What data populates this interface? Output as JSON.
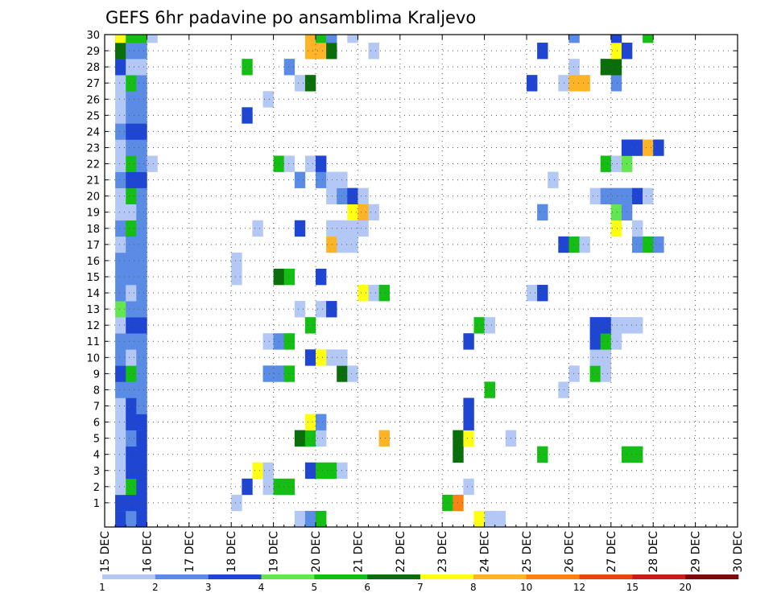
{
  "chart_data": {
    "type": "heatmap",
    "title": "GEFS 6hr padavine po ansamblima Kraljevo",
    "x_ticks": [
      "15 DEC",
      "16 DEC",
      "17 DEC",
      "18 DEC",
      "19 DEC",
      "20 DEC",
      "21 DEC",
      "22 DEC",
      "23 DEC",
      "24 DEC",
      "25 DEC",
      "26 DEC",
      "27 DEC",
      "28 DEC",
      "29 DEC",
      "30 DEC"
    ],
    "y_ticks": [
      "1",
      "2",
      "3",
      "4",
      "5",
      "6",
      "7",
      "8",
      "9",
      "10",
      "11",
      "12",
      "13",
      "14",
      "15",
      "16",
      "17",
      "18",
      "19",
      "20",
      "21",
      "22",
      "23",
      "24",
      "25",
      "26",
      "27",
      "28",
      "29",
      "30"
    ],
    "x_range_days": [
      0,
      15
    ],
    "y_range": [
      0,
      30
    ],
    "grid": true,
    "legend": {
      "placement": "bottom",
      "levels": [
        "1",
        "2",
        "3",
        "4",
        "5",
        "6",
        "7",
        "8",
        "10",
        "12",
        "15",
        "20"
      ],
      "colors": [
        "#b4c8f5",
        "#5a8ce6",
        "#1e46d2",
        "#64e650",
        "#14be14",
        "#0a6e0a",
        "#ffff14",
        "#ffb428",
        "#fa8214",
        "#e64614",
        "#c81e14",
        "#780a0a"
      ]
    },
    "cells": [
      [
        1,
        0,
        1
      ],
      [
        1,
        0,
        2
      ],
      [
        1,
        1,
        1
      ],
      [
        1,
        1,
        2
      ],
      [
        1,
        2,
        0
      ],
      [
        1,
        3,
        0
      ],
      [
        1,
        4,
        0
      ],
      [
        1,
        5,
        0
      ],
      [
        1,
        6,
        0
      ],
      [
        1,
        7,
        0
      ],
      [
        1,
        8,
        1
      ],
      [
        1,
        9,
        2
      ],
      [
        1,
        10,
        1
      ],
      [
        1,
        11,
        1
      ],
      [
        1,
        12,
        0
      ],
      [
        1,
        13,
        3
      ],
      [
        1,
        14,
        1
      ],
      [
        1,
        15,
        1
      ],
      [
        1,
        16,
        1
      ],
      [
        1,
        17,
        0
      ],
      [
        1,
        18,
        1
      ],
      [
        1,
        19,
        0
      ],
      [
        1,
        20,
        0
      ],
      [
        1,
        21,
        1
      ],
      [
        1,
        22,
        0
      ],
      [
        1,
        23,
        0
      ],
      [
        1,
        24,
        1
      ],
      [
        1,
        25,
        0
      ],
      [
        1,
        26,
        0
      ],
      [
        1,
        27,
        0
      ],
      [
        1,
        28,
        1
      ],
      [
        1,
        28,
        2
      ],
      [
        1,
        29,
        3
      ],
      [
        1,
        29,
        4
      ],
      [
        1,
        29,
        5
      ],
      [
        1,
        30,
        5
      ],
      [
        1,
        30,
        6
      ],
      [
        2,
        0,
        1
      ],
      [
        2,
        1,
        2
      ],
      [
        2,
        2,
        4
      ],
      [
        2,
        3,
        2
      ],
      [
        2,
        4,
        2
      ],
      [
        2,
        5,
        1
      ],
      [
        2,
        6,
        2
      ],
      [
        2,
        7,
        2
      ],
      [
        2,
        8,
        1
      ],
      [
        2,
        9,
        4
      ],
      [
        2,
        10,
        0
      ],
      [
        2,
        11,
        1
      ],
      [
        2,
        12,
        2
      ],
      [
        2,
        13,
        1
      ],
      [
        2,
        14,
        0
      ],
      [
        2,
        15,
        1
      ],
      [
        2,
        16,
        1
      ],
      [
        2,
        17,
        1
      ],
      [
        2,
        18,
        4
      ],
      [
        2,
        19,
        0
      ],
      [
        2,
        20,
        4
      ],
      [
        2,
        21,
        2
      ],
      [
        2,
        22,
        4
      ],
      [
        2,
        23,
        1
      ],
      [
        2,
        24,
        2
      ],
      [
        2,
        25,
        1
      ],
      [
        2,
        26,
        1
      ],
      [
        2,
        27,
        4
      ],
      [
        2,
        28,
        0
      ],
      [
        2,
        29,
        1
      ],
      [
        2,
        30,
        4
      ],
      [
        3,
        0,
        2
      ],
      [
        3,
        1,
        2
      ],
      [
        3,
        2,
        2
      ],
      [
        3,
        3,
        2
      ],
      [
        3,
        4,
        2
      ],
      [
        3,
        5,
        2
      ],
      [
        3,
        6,
        2
      ],
      [
        3,
        7,
        1
      ],
      [
        3,
        8,
        1
      ],
      [
        3,
        9,
        1
      ],
      [
        3,
        10,
        1
      ],
      [
        3,
        11,
        1
      ],
      [
        3,
        12,
        2
      ],
      [
        3,
        13,
        1
      ],
      [
        3,
        14,
        1
      ],
      [
        3,
        15,
        1
      ],
      [
        3,
        16,
        1
      ],
      [
        3,
        17,
        1
      ],
      [
        3,
        18,
        1
      ],
      [
        3,
        19,
        1
      ],
      [
        3,
        20,
        1
      ],
      [
        3,
        21,
        2
      ],
      [
        3,
        22,
        1
      ],
      [
        3,
        23,
        1
      ],
      [
        3,
        24,
        2
      ],
      [
        3,
        25,
        1
      ],
      [
        3,
        26,
        1
      ],
      [
        3,
        27,
        1
      ],
      [
        3,
        28,
        0
      ],
      [
        3,
        29,
        1
      ],
      [
        3,
        30,
        4
      ],
      [
        4,
        22,
        0
      ],
      [
        4,
        30,
        0
      ],
      [
        12,
        1,
        0
      ],
      [
        12,
        15,
        0
      ],
      [
        12,
        16,
        0
      ],
      [
        13,
        2,
        2
      ],
      [
        13,
        25,
        2
      ],
      [
        13,
        28,
        4
      ],
      [
        14,
        3,
        6
      ],
      [
        14,
        18,
        0
      ],
      [
        15,
        2,
        0
      ],
      [
        15,
        3,
        0
      ],
      [
        15,
        9,
        1
      ],
      [
        15,
        11,
        0
      ],
      [
        15,
        26,
        0
      ],
      [
        16,
        2,
        4
      ],
      [
        16,
        9,
        1
      ],
      [
        16,
        11,
        1
      ],
      [
        16,
        22,
        4
      ],
      [
        16,
        15,
        5
      ],
      [
        17,
        2,
        4
      ],
      [
        17,
        9,
        4
      ],
      [
        17,
        11,
        4
      ],
      [
        17,
        15,
        4
      ],
      [
        17,
        22,
        0
      ],
      [
        17,
        28,
        1
      ],
      [
        18,
        0,
        0
      ],
      [
        18,
        5,
        5
      ],
      [
        18,
        13,
        0
      ],
      [
        18,
        18,
        2
      ],
      [
        18,
        21,
        1
      ],
      [
        18,
        27,
        0
      ],
      [
        19,
        0,
        1
      ],
      [
        19,
        3,
        2
      ],
      [
        19,
        5,
        4
      ],
      [
        19,
        6,
        6
      ],
      [
        19,
        10,
        2
      ],
      [
        19,
        12,
        4
      ],
      [
        19,
        22,
        0
      ],
      [
        19,
        27,
        5
      ],
      [
        19,
        29,
        7
      ],
      [
        19,
        30,
        7
      ],
      [
        20,
        0,
        4
      ],
      [
        20,
        3,
        4
      ],
      [
        20,
        5,
        0
      ],
      [
        20,
        6,
        1
      ],
      [
        20,
        10,
        6
      ],
      [
        20,
        13,
        0
      ],
      [
        20,
        15,
        2
      ],
      [
        20,
        21,
        1
      ],
      [
        20,
        22,
        2
      ],
      [
        20,
        29,
        7
      ],
      [
        20,
        30,
        4
      ],
      [
        21,
        3,
        4
      ],
      [
        21,
        10,
        0
      ],
      [
        21,
        13,
        2
      ],
      [
        21,
        17,
        7
      ],
      [
        21,
        18,
        0
      ],
      [
        21,
        20,
        0
      ],
      [
        21,
        21,
        0
      ],
      [
        21,
        29,
        5
      ],
      [
        21,
        30,
        1
      ],
      [
        22,
        3,
        0
      ],
      [
        22,
        9,
        5
      ],
      [
        22,
        10,
        0
      ],
      [
        22,
        17,
        0
      ],
      [
        22,
        18,
        0
      ],
      [
        22,
        20,
        1
      ],
      [
        22,
        21,
        0
      ],
      [
        23,
        9,
        0
      ],
      [
        23,
        17,
        0
      ],
      [
        23,
        18,
        0
      ],
      [
        23,
        19,
        6
      ],
      [
        23,
        20,
        2
      ],
      [
        23,
        30,
        0
      ],
      [
        24,
        14,
        6
      ],
      [
        24,
        18,
        0
      ],
      [
        24,
        19,
        7
      ],
      [
        24,
        20,
        0
      ],
      [
        25,
        14,
        0
      ],
      [
        25,
        19,
        0
      ],
      [
        25,
        29,
        0
      ],
      [
        26,
        5,
        7
      ],
      [
        26,
        14,
        4
      ],
      [
        32,
        1,
        4
      ],
      [
        33,
        1,
        8
      ],
      [
        33,
        4,
        5
      ],
      [
        33,
        5,
        5
      ],
      [
        34,
        2,
        0
      ],
      [
        34,
        5,
        6
      ],
      [
        34,
        6,
        2
      ],
      [
        34,
        7,
        2
      ],
      [
        34,
        11,
        2
      ],
      [
        35,
        0,
        6
      ],
      [
        35,
        12,
        4
      ],
      [
        36,
        0,
        0
      ],
      [
        36,
        8,
        4
      ],
      [
        36,
        12,
        0
      ],
      [
        37,
        0,
        0
      ],
      [
        38,
        5,
        0
      ],
      [
        40,
        14,
        0
      ],
      [
        40,
        27,
        2
      ],
      [
        41,
        4,
        4
      ],
      [
        41,
        14,
        2
      ],
      [
        41,
        19,
        1
      ],
      [
        41,
        29,
        2
      ],
      [
        42,
        21,
        0
      ],
      [
        43,
        8,
        0
      ],
      [
        43,
        17,
        2
      ],
      [
        43,
        27,
        0
      ],
      [
        44,
        9,
        0
      ],
      [
        44,
        17,
        4
      ],
      [
        44,
        27,
        7
      ],
      [
        44,
        28,
        0
      ],
      [
        44,
        30,
        1
      ],
      [
        45,
        17,
        0
      ],
      [
        45,
        27,
        7
      ],
      [
        46,
        9,
        4
      ],
      [
        46,
        10,
        0
      ],
      [
        46,
        11,
        2
      ],
      [
        46,
        12,
        2
      ],
      [
        46,
        20,
        0
      ],
      [
        47,
        9,
        0
      ],
      [
        47,
        10,
        0
      ],
      [
        47,
        11,
        4
      ],
      [
        47,
        12,
        2
      ],
      [
        47,
        20,
        1
      ],
      [
        47,
        22,
        4
      ],
      [
        47,
        28,
        5
      ],
      [
        48,
        11,
        0
      ],
      [
        48,
        12,
        0
      ],
      [
        48,
        18,
        6
      ],
      [
        48,
        19,
        3
      ],
      [
        48,
        20,
        1
      ],
      [
        48,
        22,
        0
      ],
      [
        48,
        27,
        1
      ],
      [
        48,
        28,
        5
      ],
      [
        48,
        29,
        6
      ],
      [
        48,
        30,
        2
      ],
      [
        49,
        4,
        4
      ],
      [
        49,
        12,
        0
      ],
      [
        49,
        19,
        1
      ],
      [
        49,
        20,
        1
      ],
      [
        49,
        22,
        3
      ],
      [
        49,
        23,
        2
      ],
      [
        49,
        29,
        2
      ],
      [
        50,
        4,
        4
      ],
      [
        50,
        12,
        0
      ],
      [
        50,
        17,
        1
      ],
      [
        50,
        18,
        0
      ],
      [
        50,
        20,
        2
      ],
      [
        50,
        23,
        2
      ],
      [
        51,
        17,
        4
      ],
      [
        51,
        20,
        0
      ],
      [
        51,
        23,
        7
      ],
      [
        51,
        30,
        4
      ],
      [
        52,
        17,
        1
      ],
      [
        52,
        23,
        2
      ]
    ]
  }
}
